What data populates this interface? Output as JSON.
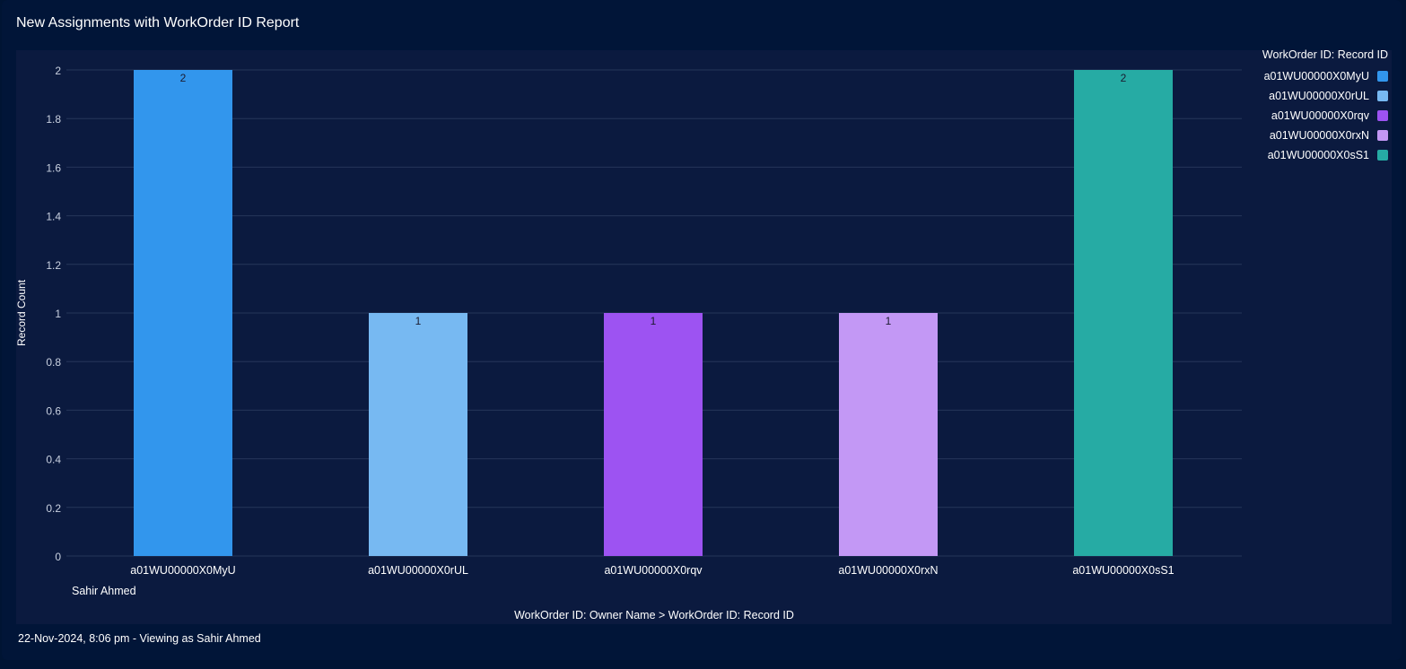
{
  "report": {
    "title": "New Assignments with WorkOrder ID Report",
    "footer": "22-Nov-2024, 8:06 pm - Viewing as Sahir Ahmed"
  },
  "chart_data": {
    "type": "bar",
    "title": "New Assignments with WorkOrder ID Report",
    "xlabel": "WorkOrder ID: Owner Name  >  WorkOrder ID: Record ID",
    "ylabel": "Record Count",
    "group_label": "Sahir Ahmed",
    "categories": [
      "a01WU00000X0MyU",
      "a01WU00000X0rUL",
      "a01WU00000X0rqv",
      "a01WU00000X0rxN",
      "a01WU00000X0sS1"
    ],
    "values": [
      2,
      1,
      1,
      1,
      2
    ],
    "colors": [
      "#3296ed",
      "#77b9f2",
      "#9d53f2",
      "#c398f5",
      "#26aba4"
    ],
    "ylim": [
      0,
      2
    ],
    "yticks": [
      "0",
      "0.2",
      "0.4",
      "0.6",
      "0.8",
      "1",
      "1.2",
      "1.4",
      "1.6",
      "1.8",
      "2"
    ],
    "grid": true,
    "data_labels": true,
    "legend": {
      "title": "WorkOrder ID: Record ID",
      "position": "right"
    }
  },
  "colors": {
    "background": "#001433",
    "plot_background": "#0b1a3f",
    "gridline": "#26365a",
    "text": "#ffffff",
    "tick_text": "#c9d1e0"
  }
}
